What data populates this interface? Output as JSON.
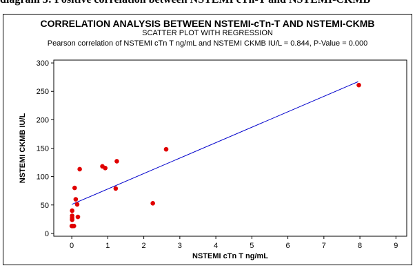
{
  "caption": "diagram 3: Positive correlation between NSTEMI cTn-T and NSTEMI-CKMB",
  "chart_data": {
    "type": "scatter",
    "title": "CORRELATION ANALYSIS BETWEEN NSTEMI-cTn-T AND NSTEMI-CKMB",
    "subtitle": "SCATTER PLOT WITH REGRESSION",
    "annotation": "Pearson correlation of NSTEMI cTn T ng/mL and NSTEMI CKMB IU/L = 0.844, P-Value = 0.000",
    "xlabel": "NSTEMI cTn T ng/mL",
    "ylabel": "NSTEMI CKMB IU/L",
    "xlim": [
      -0.5,
      9.3
    ],
    "ylim": [
      -5,
      305
    ],
    "xticks": [
      0,
      1,
      2,
      3,
      4,
      5,
      6,
      7,
      8,
      9
    ],
    "yticks": [
      0,
      50,
      100,
      150,
      200,
      250,
      300
    ],
    "points": [
      {
        "x": 0.0,
        "y": 13
      },
      {
        "x": 0.02,
        "y": 13
      },
      {
        "x": 0.06,
        "y": 13
      },
      {
        "x": 0.01,
        "y": 24
      },
      {
        "x": 0.01,
        "y": 27
      },
      {
        "x": 0.01,
        "y": 31
      },
      {
        "x": 0.01,
        "y": 40
      },
      {
        "x": 0.17,
        "y": 29
      },
      {
        "x": 0.15,
        "y": 51
      },
      {
        "x": 0.11,
        "y": 60
      },
      {
        "x": 0.08,
        "y": 80
      },
      {
        "x": 0.22,
        "y": 113
      },
      {
        "x": 0.85,
        "y": 118
      },
      {
        "x": 0.93,
        "y": 115
      },
      {
        "x": 1.25,
        "y": 127
      },
      {
        "x": 1.22,
        "y": 79
      },
      {
        "x": 2.25,
        "y": 53
      },
      {
        "x": 2.62,
        "y": 148
      },
      {
        "x": 7.97,
        "y": 261
      }
    ],
    "regression": {
      "x": [
        0,
        7.95
      ],
      "y": [
        51,
        267
      ]
    },
    "colors": {
      "points": "#e00000",
      "line": "#0000cc",
      "axis": "#000000"
    },
    "grid": false
  }
}
